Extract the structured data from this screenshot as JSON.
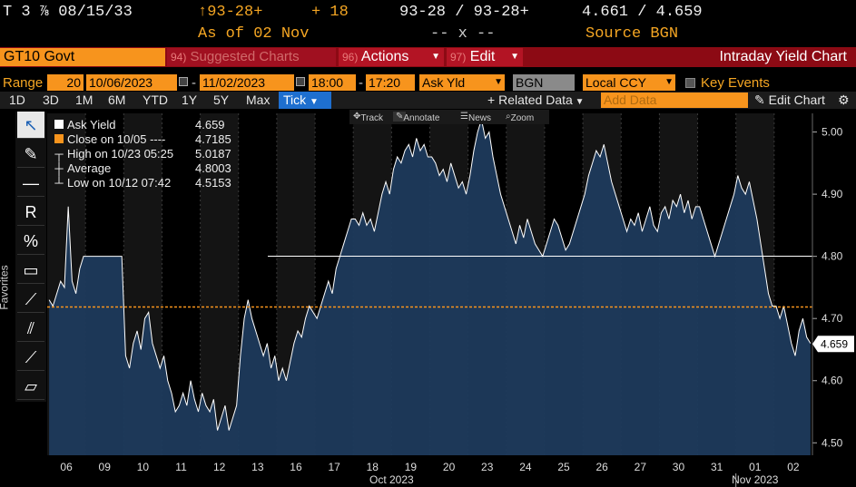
{
  "quote": {
    "ticker": "T 3 ⅞ 08/15/33",
    "price": "↑93-28+",
    "change": "+ 18",
    "bid_ask": "93-28 / 93-28+",
    "yields": "4.661 / 4.659",
    "as_of": "As of 02 Nov",
    "bid_ask_sizes": "-- x --",
    "source": "Source BGN"
  },
  "funcbar": {
    "security": "GT10 Govt",
    "suggest_num": "94)",
    "suggest_label": "Suggested Charts",
    "actions_num": "96)",
    "actions_label": "Actions",
    "edit_num": "97)",
    "edit_label": "Edit",
    "title": "Intraday Yield Chart"
  },
  "range": {
    "label": "Range",
    "interval": "20",
    "start_date": "10/06/2023",
    "end_date": "11/02/2023",
    "start_time": "18:00",
    "end_time": "17:20",
    "field": "Ask Yld",
    "source": "BGN",
    "currency": "Local CCY",
    "key_events": "Key Events"
  },
  "periods": [
    "1D",
    "3D",
    "1M",
    "6M",
    "YTD",
    "1Y",
    "5Y",
    "Max"
  ],
  "tick_label": "Tick",
  "related_data": "Related Data",
  "add_data_placeholder": "Add Data",
  "edit_chart": "Edit Chart",
  "chart_tools": [
    "Track",
    "Annotate",
    "News",
    "Zoom"
  ],
  "favorites_label": "Favorites",
  "legend": {
    "ask_yield_label": "Ask Yield",
    "ask_yield_value": "4.659",
    "close_label": "Close on 10/05 ----",
    "close_value": "4.7185",
    "high_label": "High on 10/23 05:25",
    "high_value": "5.0187",
    "avg_label": "Average",
    "avg_value": "4.8003",
    "low_label": "Low on 10/12 07:42",
    "low_value": "4.5153"
  },
  "colors": {
    "accent": "#f7941d",
    "area": "#1d3a5c",
    "line": "#ffffff",
    "close_line": "#f7941d",
    "tick_button": "#1e6fcf"
  },
  "chart_data": {
    "type": "area",
    "x": [
      "06",
      "09",
      "10",
      "11",
      "12",
      "13",
      "16",
      "17",
      "18",
      "19",
      "20",
      "23",
      "24",
      "25",
      "26",
      "27",
      "30",
      "31",
      "01",
      "02"
    ],
    "x_month_labels": [
      "Oct 2023",
      "Nov 2023"
    ],
    "y_ticks": [
      "4.50",
      "4.60",
      "4.70",
      "4.80",
      "4.90",
      "5.00"
    ],
    "ylim": [
      4.48,
      5.03
    ],
    "current_value": "4.659",
    "close_value": 4.7185,
    "series": [
      {
        "values": [
          [
            4.73,
            4.72,
            4.74,
            4.76,
            4.75,
            4.88,
            4.76,
            4.74,
            4.78,
            4.8
          ],
          [
            4.8,
            4.8,
            4.8,
            4.8,
            4.8,
            4.8,
            4.8,
            4.8,
            4.8,
            4.8
          ],
          [
            4.64,
            4.62,
            4.66,
            4.68,
            4.65,
            4.7,
            4.71,
            4.66,
            4.64,
            4.62
          ],
          [
            4.64,
            4.6,
            4.58,
            4.55,
            4.56,
            4.58,
            4.56,
            4.6,
            4.57,
            4.55
          ],
          [
            4.58,
            4.56,
            4.55,
            4.57,
            4.52,
            4.54,
            4.56,
            4.52,
            4.54,
            4.56
          ],
          [
            4.64,
            4.7,
            4.73,
            4.7,
            4.68,
            4.66,
            4.64,
            4.66,
            4.62,
            4.64
          ],
          [
            4.6,
            4.62,
            4.6,
            4.63,
            4.66,
            4.68,
            4.67,
            4.7,
            4.72,
            4.71
          ],
          [
            4.7,
            4.72,
            4.74,
            4.76,
            4.74,
            4.78,
            4.8,
            4.82,
            4.84,
            4.86
          ],
          [
            4.86,
            4.85,
            4.87,
            4.85,
            4.86,
            4.84,
            4.87,
            4.9,
            4.92,
            4.9
          ],
          [
            4.94,
            4.96,
            4.95,
            4.97,
            4.98,
            4.96,
            4.99,
            4.97,
            4.98,
            4.96
          ],
          [
            4.96,
            4.95,
            4.93,
            4.94,
            4.92,
            4.95,
            4.93,
            4.91,
            4.92,
            4.9
          ],
          [
            4.93,
            4.97,
            5.0,
            5.02,
            4.99,
            5.0,
            4.96,
            4.93,
            4.9,
            4.88
          ],
          [
            4.86,
            4.84,
            4.82,
            4.85,
            4.83,
            4.86,
            4.84,
            4.82,
            4.81,
            4.8
          ],
          [
            4.82,
            4.84,
            4.86,
            4.85,
            4.83,
            4.81,
            4.82,
            4.84,
            4.86,
            4.88
          ],
          [
            4.9,
            4.93,
            4.95,
            4.97,
            4.96,
            4.98,
            4.95,
            4.92,
            4.9,
            4.88
          ],
          [
            4.86,
            4.84,
            4.86,
            4.85,
            4.87,
            4.84,
            4.86,
            4.88,
            4.85,
            4.84
          ],
          [
            4.87,
            4.88,
            4.86,
            4.89,
            4.88,
            4.9,
            4.87,
            4.89,
            4.86,
            4.88
          ],
          [
            4.88,
            4.86,
            4.84,
            4.82,
            4.8,
            4.82,
            4.84,
            4.86,
            4.88,
            4.9
          ],
          [
            4.93,
            4.91,
            4.9,
            4.92,
            4.89,
            4.86,
            4.82,
            4.78,
            4.74,
            4.72
          ],
          [
            4.72,
            4.7,
            4.72,
            4.69,
            4.66,
            4.64,
            4.68,
            4.7,
            4.67,
            4.66
          ]
        ]
      }
    ]
  }
}
